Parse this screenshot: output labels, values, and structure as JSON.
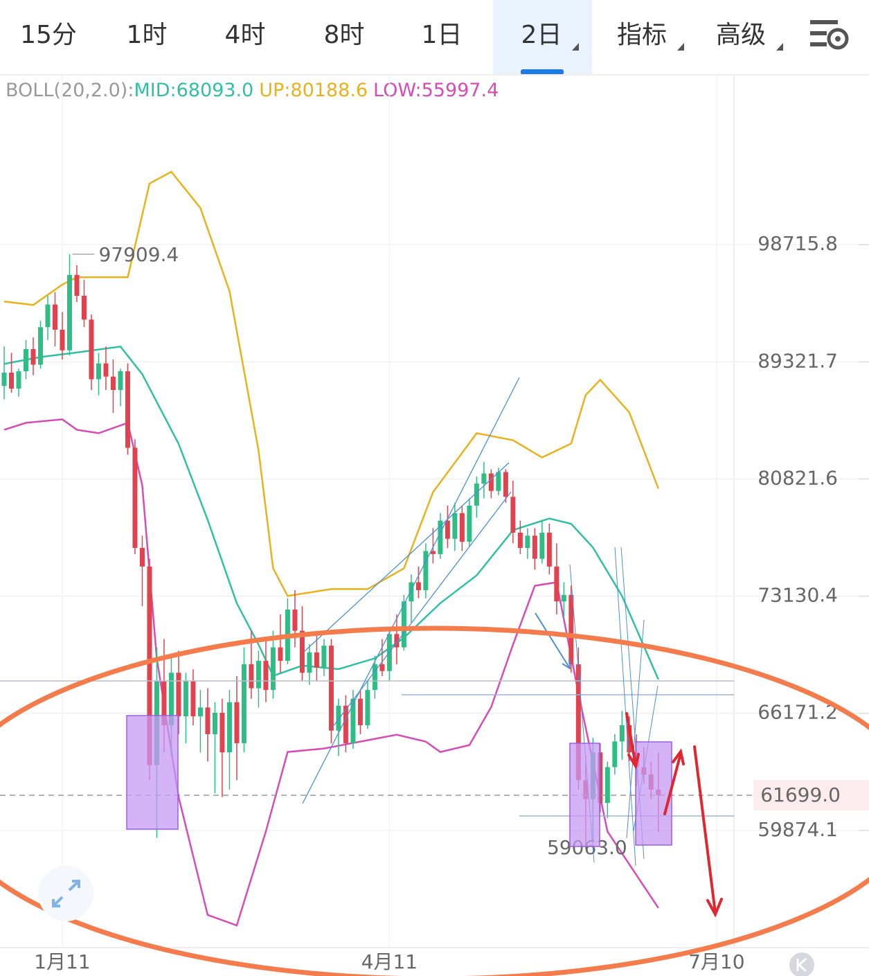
{
  "tabs": {
    "items": [
      "15分",
      "1时",
      "4时",
      "8时",
      "1日",
      "2日",
      "指标",
      "高级"
    ],
    "active": 5
  },
  "chart_data": {
    "type": "candlestick",
    "indicator": {
      "name": "BOLL(20,2.0):",
      "mid": "MID:68093.0",
      "up": "UP:80188.6",
      "low": "LOW:55997.4"
    },
    "log_scale": true,
    "grid": true,
    "up_color": "#2ebd85",
    "down_color": "#e2424d",
    "ylim": [
      54176,
      114115
    ],
    "xlim": [
      -0.57,
      100.4
    ],
    "yticks": [
      98715.8,
      89321.7,
      80821.6,
      73130.4,
      66171.2,
      59874.1
    ],
    "xticks": [
      {
        "value": 8,
        "label": "1月11"
      },
      {
        "value": 53,
        "label": "4月11"
      },
      {
        "value": 98,
        "label": "7月10"
      }
    ],
    "last_price": {
      "value": 61699,
      "label": "61699.0"
    },
    "high_label": 97909.4,
    "low_label": {
      "value": 59063,
      "label": "59063.0"
    },
    "open": [
      87500,
      88500,
      87300,
      88600,
      90300,
      89100,
      92000,
      93800,
      91800,
      90200,
      96200,
      94500,
      92600,
      88000,
      89200,
      88200,
      87200,
      88600,
      83000,
      76200,
      75000,
      63300,
      68000,
      65500,
      68500,
      66000,
      68000,
      66000,
      66500,
      65000,
      66200,
      64000,
      66800,
      64500,
      69000,
      67600,
      69200,
      67500,
      70000,
      69200,
      72300,
      71000,
      68500,
      69700,
      68800,
      70100,
      65200,
      66600,
      64500,
      67000,
      65500,
      67500,
      69000,
      68600,
      70800,
      70000,
      72800,
      74000,
      73500,
      76000,
      75800,
      78000,
      76800,
      78500,
      76600,
      79000,
      80500,
      81200,
      80000,
      81300,
      79600,
      77200,
      76200,
      77000,
      75500,
      77200,
      75000,
      72800,
      73200,
      69000,
      62500,
      61500,
      64000,
      61300,
      63200,
      64600,
      65500,
      64000,
      63200,
      62800,
      62000
    ],
    "high": [
      90500,
      90000,
      88800,
      91000,
      91200,
      92500,
      94500,
      94800,
      93200,
      97909.4,
      97000,
      95800,
      93000,
      90000,
      90500,
      89500,
      88800,
      89200,
      83600,
      77000,
      75500,
      70000,
      70500,
      69500,
      69800,
      68500,
      68700,
      67500,
      67600,
      66800,
      67000,
      67500,
      68300,
      70000,
      71000,
      69800,
      70500,
      71000,
      72000,
      73000,
      73500,
      72500,
      70200,
      70800,
      70500,
      70500,
      67000,
      67200,
      67500,
      67500,
      68000,
      69500,
      70500,
      71200,
      72000,
      73200,
      74500,
      75000,
      76500,
      77500,
      78500,
      79000,
      79200,
      79000,
      79500,
      81000,
      82000,
      81500,
      81600,
      81500,
      80700,
      78000,
      77500,
      77500,
      78000,
      77800,
      76500,
      74000,
      73800,
      70000,
      63800,
      64800,
      64500,
      63500,
      65000,
      66300,
      66000,
      65000,
      64300,
      63500,
      64000
    ],
    "low": [
      86500,
      87000,
      86700,
      88000,
      88300,
      88800,
      91000,
      90500,
      89500,
      89800,
      94000,
      92000,
      87200,
      86800,
      87200,
      85500,
      86000,
      82500,
      75800,
      72500,
      62500,
      59500,
      64000,
      63800,
      65000,
      64500,
      65500,
      64000,
      63500,
      61800,
      61600,
      62000,
      62500,
      64000,
      67000,
      66500,
      66800,
      67000,
      68500,
      69000,
      70000,
      68000,
      67800,
      68000,
      68300,
      64500,
      63800,
      64000,
      64200,
      65000,
      65300,
      67000,
      68300,
      68000,
      69000,
      69800,
      71500,
      73000,
      73000,
      75200,
      75500,
      76200,
      76000,
      76000,
      76300,
      78200,
      79500,
      79500,
      79700,
      79200,
      76500,
      75800,
      75500,
      74800,
      75200,
      74500,
      72000,
      71800,
      68500,
      62000,
      59063,
      59300,
      60800,
      60500,
      62800,
      63600,
      63500,
      62200,
      62300,
      61500,
      59800
    ],
    "close": [
      88500,
      87300,
      88600,
      90300,
      89100,
      92000,
      93800,
      91800,
      90200,
      96200,
      94500,
      92600,
      88000,
      89200,
      88200,
      87200,
      88600,
      83000,
      76200,
      75000,
      63300,
      68000,
      65500,
      68500,
      66000,
      68000,
      66000,
      66500,
      65000,
      66200,
      64000,
      66800,
      64500,
      69000,
      67600,
      69200,
      67500,
      70000,
      69200,
      72300,
      71000,
      68500,
      69700,
      68800,
      70100,
      65200,
      66600,
      64500,
      67000,
      65500,
      67500,
      69000,
      68600,
      70800,
      70000,
      72800,
      74000,
      73500,
      76000,
      75800,
      78000,
      76800,
      78500,
      76600,
      79000,
      80500,
      81200,
      80000,
      81300,
      79600,
      77200,
      76200,
      77000,
      75500,
      77200,
      75000,
      72800,
      73200,
      69000,
      62500,
      61500,
      64000,
      61300,
      63200,
      64600,
      65500,
      64000,
      63200,
      62800,
      62000,
      61699
    ],
    "bands": [
      {
        "color": "#e7b21c",
        "x": [
          0,
          4,
          8,
          10,
          17,
          20,
          23,
          27,
          31,
          35,
          37,
          39,
          45,
          50,
          55,
          59,
          65,
          70,
          74,
          78,
          80,
          82,
          86,
          90
        ],
        "values": [
          94040,
          93760,
          95410,
          96010,
          96010,
          104000,
          105050,
          101850,
          94880,
          82810,
          74890,
          73140,
          73570,
          73570,
          74890,
          79920,
          84040,
          83540,
          82320,
          83300,
          86820,
          87960,
          85550,
          80160
        ]
      },
      {
        "color": "#2fc0a4",
        "x": [
          0,
          5,
          9,
          16,
          19,
          24,
          28,
          32,
          35,
          37,
          41,
          46,
          51,
          55,
          60,
          65,
          70,
          75,
          78,
          81,
          85,
          90
        ],
        "values": [
          89160,
          89690,
          89960,
          90490,
          88380,
          83290,
          78050,
          72690,
          70170,
          68320,
          68920,
          68710,
          69350,
          70580,
          72690,
          74440,
          77370,
          78140,
          77790,
          76230,
          73140,
          68110
        ]
      },
      {
        "color": "#d64bb5",
        "x": [
          0,
          3,
          8,
          10,
          13,
          17,
          19,
          21,
          24,
          28,
          32,
          36,
          39,
          44,
          49,
          54,
          58,
          60,
          64,
          67,
          70,
          73,
          76,
          79,
          83,
          90
        ],
        "values": [
          84290,
          84790,
          85040,
          84290,
          84040,
          84790,
          80400,
          69350,
          61610,
          55710,
          55210,
          59820,
          64020,
          64210,
          64590,
          64970,
          64590,
          64020,
          64400,
          66530,
          70170,
          73780,
          74000,
          67330,
          59820,
          56040
        ]
      }
    ]
  }
}
